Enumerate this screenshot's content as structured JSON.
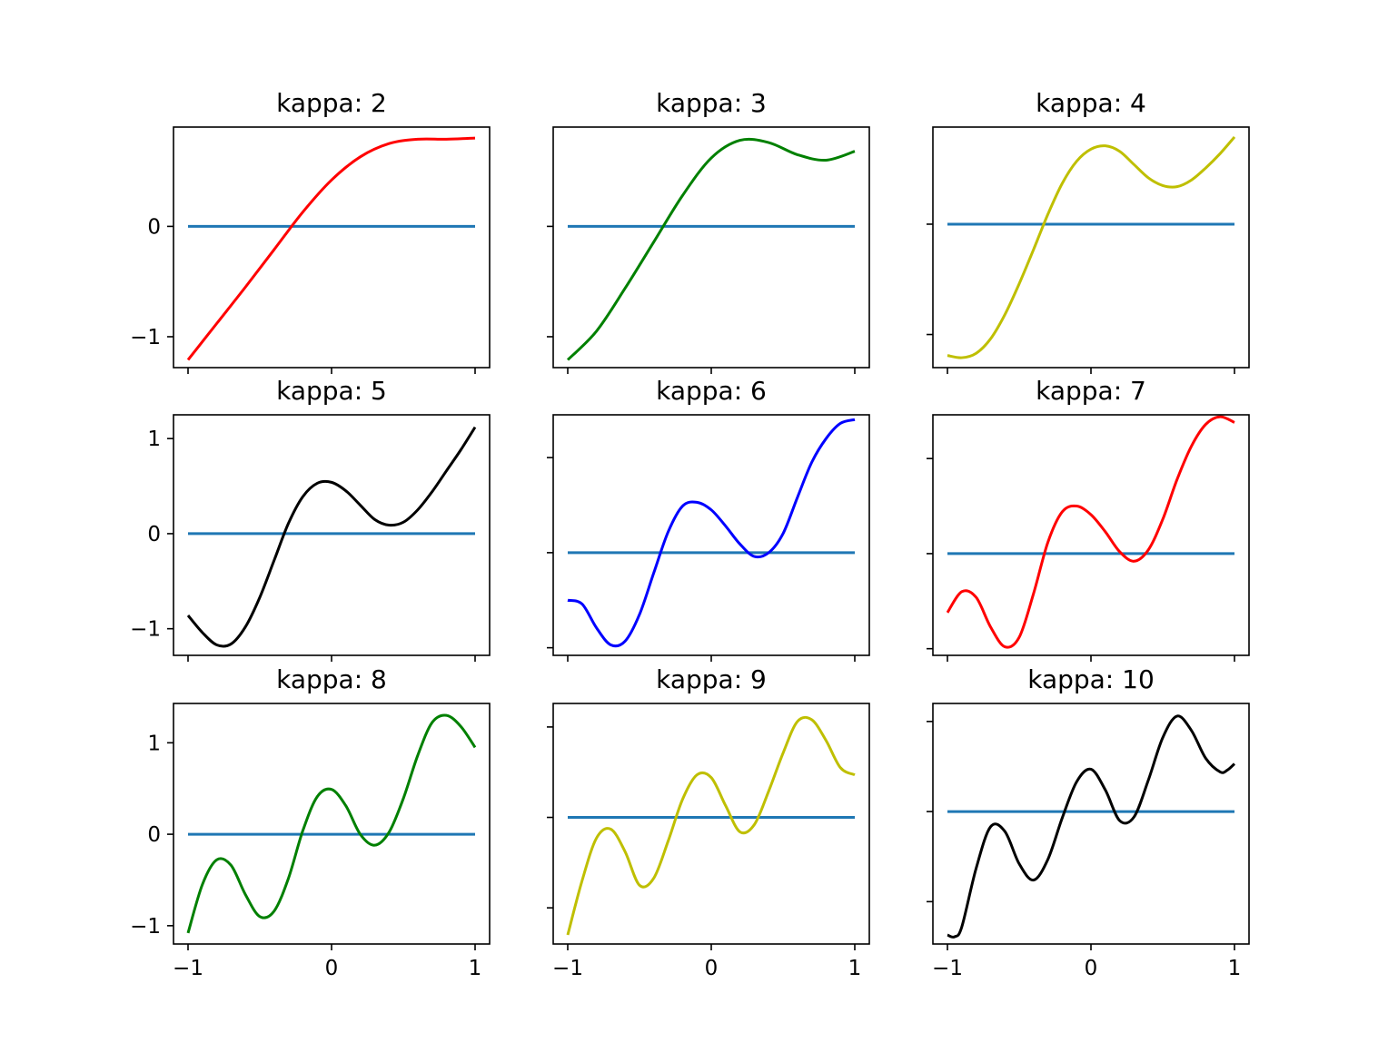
{
  "chart_data": [
    {
      "type": "line",
      "title": "kappa: 2",
      "xlim": [
        -1,
        1
      ],
      "ylim": [
        -1.28,
        0.9
      ],
      "xticks": [
        "−1",
        "0",
        "1"
      ],
      "yticks": [
        "0",
        "−1"
      ],
      "show_xticklabels": false,
      "show_yticklabels": true,
      "baseline": 0.0,
      "curve_color": "#ff0000",
      "baseline_color": "#1f77b4",
      "series": [
        {
          "x": [
            -1,
            -0.8,
            -0.6,
            -0.4,
            -0.2,
            0,
            0.2,
            0.4,
            0.6,
            0.8,
            1
          ],
          "y": [
            -1.21,
            -0.88,
            -0.55,
            -0.21,
            0.13,
            0.42,
            0.63,
            0.75,
            0.79,
            0.79,
            0.8
          ]
        }
      ]
    },
    {
      "type": "line",
      "title": "kappa: 3",
      "xlim": [
        -1,
        1
      ],
      "ylim": [
        -1.28,
        0.9
      ],
      "xticks": [
        "−1",
        "0",
        "1"
      ],
      "yticks": [
        "",
        ""
      ],
      "show_xticklabels": false,
      "show_yticklabels": false,
      "baseline": 0.0,
      "curve_color": "#008000",
      "baseline_color": "#1f77b4",
      "series": [
        {
          "x": [
            -1,
            -0.8,
            -0.6,
            -0.4,
            -0.2,
            0,
            0.2,
            0.4,
            0.6,
            0.8,
            1
          ],
          "y": [
            -1.21,
            -0.95,
            -0.56,
            -0.14,
            0.28,
            0.62,
            0.78,
            0.76,
            0.65,
            0.6,
            0.68
          ]
        }
      ]
    },
    {
      "type": "line",
      "title": "kappa: 4",
      "xlim": [
        -1,
        1
      ],
      "ylim": [
        -1.3,
        0.88
      ],
      "xticks": [
        "−1",
        "0",
        "1"
      ],
      "yticks": [
        "",
        ""
      ],
      "show_xticklabels": false,
      "show_yticklabels": false,
      "baseline": 0.0,
      "curve_color": "#bfbf00",
      "baseline_color": "#1f77b4",
      "series": [
        {
          "x": [
            -1,
            -0.9,
            -0.8,
            -0.7,
            -0.6,
            -0.5,
            -0.4,
            -0.3,
            -0.2,
            -0.1,
            0,
            0.1,
            0.2,
            0.3,
            0.4,
            0.5,
            0.6,
            0.7,
            0.8,
            0.9,
            1
          ],
          "y": [
            -1.19,
            -1.21,
            -1.17,
            -1.04,
            -0.82,
            -0.54,
            -0.23,
            0.09,
            0.37,
            0.57,
            0.68,
            0.71,
            0.66,
            0.54,
            0.42,
            0.35,
            0.34,
            0.4,
            0.51,
            0.64,
            0.79
          ]
        }
      ]
    },
    {
      "type": "line",
      "title": "kappa: 5",
      "xlim": [
        -1,
        1
      ],
      "ylim": [
        -1.28,
        1.25
      ],
      "xticks": [
        "−1",
        "0",
        "1"
      ],
      "yticks": [
        "1",
        "0",
        "−1"
      ],
      "show_xticklabels": false,
      "show_yticklabels": true,
      "baseline": 0.0,
      "curve_color": "#000000",
      "baseline_color": "#1f77b4",
      "series": [
        {
          "x": [
            -1,
            -0.9,
            -0.8,
            -0.7,
            -0.6,
            -0.5,
            -0.4,
            -0.3,
            -0.2,
            -0.1,
            0,
            0.1,
            0.2,
            0.3,
            0.4,
            0.5,
            0.6,
            0.7,
            0.8,
            0.9,
            1
          ],
          "y": [
            -0.86,
            -1.04,
            -1.17,
            -1.16,
            -0.98,
            -0.67,
            -0.28,
            0.11,
            0.39,
            0.53,
            0.54,
            0.45,
            0.3,
            0.15,
            0.09,
            0.12,
            0.25,
            0.44,
            0.66,
            0.88,
            1.12
          ]
        }
      ]
    },
    {
      "type": "line",
      "title": "kappa: 6",
      "xlim": [
        -1,
        1
      ],
      "ylim": [
        -1.08,
        1.45
      ],
      "xticks": [
        "−1",
        "0",
        "1"
      ],
      "yticks": [
        "",
        "",
        ""
      ],
      "show_xticklabels": false,
      "show_yticklabels": false,
      "baseline": 0.0,
      "curve_color": "#0000ff",
      "baseline_color": "#1f77b4",
      "series": [
        {
          "x": [
            -1,
            -0.9,
            -0.8,
            -0.7,
            -0.6,
            -0.5,
            -0.4,
            -0.3,
            -0.2,
            -0.1,
            0,
            0.1,
            0.2,
            0.3,
            0.4,
            0.5,
            0.6,
            0.7,
            0.8,
            0.9,
            1
          ],
          "y": [
            -0.5,
            -0.54,
            -0.79,
            -0.97,
            -0.93,
            -0.65,
            -0.21,
            0.22,
            0.49,
            0.53,
            0.45,
            0.28,
            0.09,
            -0.04,
            0.0,
            0.2,
            0.58,
            0.95,
            1.2,
            1.36,
            1.4
          ]
        }
      ]
    },
    {
      "type": "line",
      "title": "kappa: 7",
      "xlim": [
        -1,
        1
      ],
      "ylim": [
        -1.07,
        1.46
      ],
      "xticks": [
        "−1",
        "0",
        "1"
      ],
      "yticks": [
        "",
        "",
        ""
      ],
      "show_xticklabels": false,
      "show_yticklabels": false,
      "baseline": 0.0,
      "curve_color": "#ff0000",
      "baseline_color": "#1f77b4",
      "series": [
        {
          "x": [
            -1,
            -0.9,
            -0.8,
            -0.7,
            -0.6,
            -0.5,
            -0.4,
            -0.3,
            -0.2,
            -0.1,
            0,
            0.1,
            0.2,
            0.3,
            0.4,
            0.5,
            0.6,
            0.7,
            0.8,
            0.9,
            1
          ],
          "y": [
            -0.62,
            -0.4,
            -0.46,
            -0.77,
            -0.98,
            -0.88,
            -0.42,
            0.12,
            0.44,
            0.5,
            0.41,
            0.23,
            0.02,
            -0.08,
            0.04,
            0.36,
            0.78,
            1.13,
            1.36,
            1.44,
            1.38
          ]
        }
      ]
    },
    {
      "type": "line",
      "title": "kappa: 8",
      "xlim": [
        -1,
        1
      ],
      "ylim": [
        -1.2,
        1.43
      ],
      "xticks": [
        "−1",
        "0",
        "1"
      ],
      "yticks": [
        "1",
        "0",
        "−1"
      ],
      "show_xticklabels": true,
      "show_yticklabels": true,
      "baseline": 0.0,
      "curve_color": "#008000",
      "baseline_color": "#1f77b4",
      "series": [
        {
          "x": [
            -1,
            -0.9,
            -0.8,
            -0.7,
            -0.6,
            -0.5,
            -0.4,
            -0.3,
            -0.2,
            -0.1,
            0,
            0.1,
            0.2,
            0.3,
            0.4,
            0.5,
            0.6,
            0.7,
            0.8,
            0.9,
            1
          ],
          "y": [
            -1.08,
            -0.55,
            -0.28,
            -0.34,
            -0.66,
            -0.9,
            -0.84,
            -0.48,
            0.04,
            0.41,
            0.49,
            0.31,
            0.0,
            -0.12,
            0.02,
            0.39,
            0.86,
            1.22,
            1.3,
            1.18,
            0.95
          ]
        }
      ]
    },
    {
      "type": "line",
      "title": "kappa: 9",
      "xlim": [
        -1,
        1
      ],
      "ylim": [
        -1.4,
        1.26
      ],
      "xticks": [
        "−1",
        "0",
        "1"
      ],
      "yticks": [
        "",
        "",
        ""
      ],
      "show_xticklabels": true,
      "show_yticklabels": false,
      "baseline": 0.0,
      "curve_color": "#bfbf00",
      "baseline_color": "#1f77b4",
      "series": [
        {
          "x": [
            -1,
            -0.9,
            -0.8,
            -0.7,
            -0.6,
            -0.5,
            -0.4,
            -0.3,
            -0.2,
            -0.1,
            0,
            0.1,
            0.2,
            0.3,
            0.4,
            0.5,
            0.6,
            0.7,
            0.8,
            0.9,
            1
          ],
          "y": [
            -1.3,
            -0.7,
            -0.23,
            -0.13,
            -0.38,
            -0.75,
            -0.67,
            -0.26,
            0.2,
            0.47,
            0.44,
            0.13,
            -0.16,
            -0.08,
            0.29,
            0.71,
            1.06,
            1.08,
            0.85,
            0.55,
            0.47
          ]
        }
      ]
    },
    {
      "type": "line",
      "title": "kappa: 10",
      "xlim": [
        -1,
        1
      ],
      "ylim": [
        -1.47,
        1.2
      ],
      "xticks": [
        "−1",
        "0",
        "1"
      ],
      "yticks": [
        "",
        "",
        ""
      ],
      "show_xticklabels": true,
      "show_yticklabels": false,
      "baseline": 0.0,
      "curve_color": "#000000",
      "baseline_color": "#1f77b4",
      "series": [
        {
          "x": [
            -1,
            -0.95,
            -0.9,
            -0.8,
            -0.7,
            -0.6,
            -0.5,
            -0.4,
            -0.3,
            -0.2,
            -0.1,
            0,
            0.1,
            0.2,
            0.3,
            0.4,
            0.5,
            0.6,
            0.7,
            0.8,
            0.9,
            0.95,
            1
          ],
          "y": [
            -1.37,
            -1.39,
            -1.28,
            -0.63,
            -0.17,
            -0.22,
            -0.58,
            -0.76,
            -0.53,
            -0.07,
            0.33,
            0.47,
            0.24,
            -0.1,
            -0.06,
            0.35,
            0.82,
            1.06,
            0.9,
            0.59,
            0.44,
            0.46,
            0.53
          ]
        }
      ]
    }
  ]
}
